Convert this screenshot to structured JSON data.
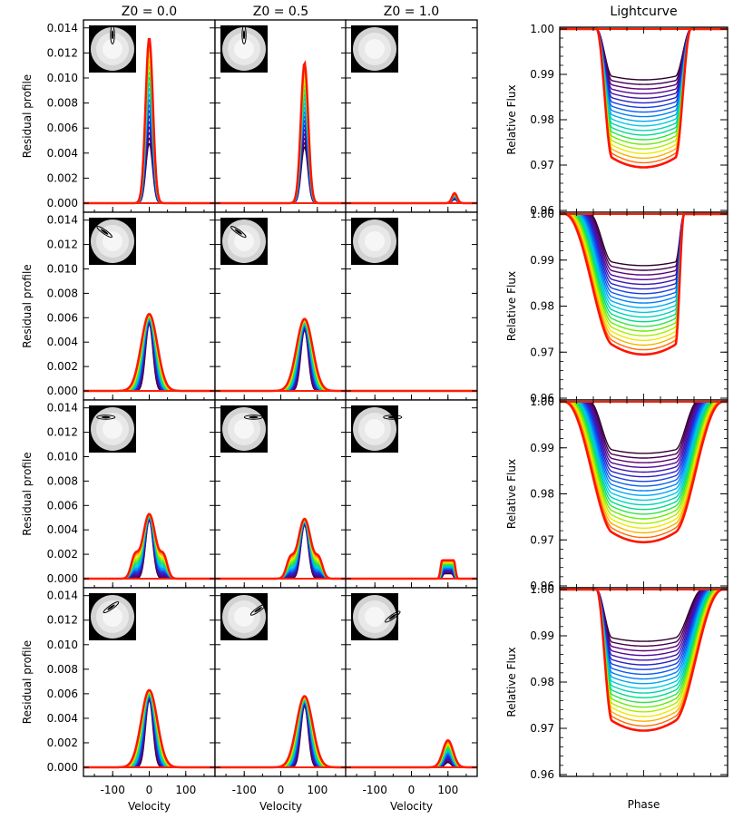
{
  "chart_data": {
    "type": "line",
    "profiles": {
      "column_titles": [
        "Z0 = 0.0",
        "Z0 = 0.5",
        "Z0 = 1.0"
      ],
      "ylabel": "Residual profile",
      "xlabel": "Velocity",
      "xlim": [
        -180,
        180
      ],
      "ylim": [
        -0.0002,
        0.0145
      ],
      "x_ticks": [
        "-100",
        "0",
        "100"
      ],
      "x_tick_values": [
        -100,
        0,
        100
      ],
      "y_ticks": [
        "0.000",
        "0.002",
        "0.004",
        "0.006",
        "0.008",
        "0.010",
        "0.012",
        "0.014"
      ],
      "y_tick_values": [
        0,
        0.002,
        0.004,
        0.006,
        0.008,
        0.01,
        0.012,
        0.014
      ],
      "rows": [
        [
          {
            "center": 0,
            "peak_min": 0.0048,
            "peak_max": 0.0132,
            "width_min": 9,
            "width_max": 10,
            "shoulder": 0
          },
          {
            "center": 65,
            "peak_min": 0.0045,
            "peak_max": 0.0112,
            "width_min": 9,
            "width_max": 10,
            "shoulder": 0
          },
          {
            "center": 118,
            "peak_min": 0.0003,
            "peak_max": 0.0008,
            "width_min": 6,
            "width_max": 7,
            "shoulder": 0
          }
        ],
        [
          {
            "center": 0,
            "peak_min": 0.0055,
            "peak_max": 0.0063,
            "width_min": 10,
            "width_max": 22,
            "shoulder": 0
          },
          {
            "center": 65,
            "peak_min": 0.005,
            "peak_max": 0.0059,
            "width_min": 10,
            "width_max": 22,
            "shoulder": 0
          },
          {
            "center": 118,
            "peak_min": 0,
            "peak_max": 0,
            "width_min": 6,
            "width_max": 6,
            "shoulder": 0
          }
        ],
        [
          {
            "center": 0,
            "peak_min": 0.0048,
            "peak_max": 0.0053,
            "width_min": 10,
            "width_max": 18,
            "shoulder": 0.0016
          },
          {
            "center": 65,
            "peak_min": 0.0044,
            "peak_max": 0.0049,
            "width_min": 10,
            "width_max": 18,
            "shoulder": 0.0014
          },
          {
            "center": 100,
            "peak_min": 0.0004,
            "peak_max": 0.0015,
            "width_min": 10,
            "width_max": 16,
            "shoulder": 0,
            "flat": true
          }
        ],
        [
          {
            "center": 0,
            "peak_min": 0.0055,
            "peak_max": 0.0063,
            "width_min": 10,
            "width_max": 22,
            "shoulder": 0
          },
          {
            "center": 65,
            "peak_min": 0.005,
            "peak_max": 0.0058,
            "width_min": 10,
            "width_max": 22,
            "shoulder": 0
          },
          {
            "center": 100,
            "peak_min": 0.0004,
            "peak_max": 0.0022,
            "width_min": 8,
            "width_max": 14,
            "shoulder": 0
          }
        ]
      ]
    },
    "lightcurves": {
      "title": "Lightcurve",
      "ylabel": "Relative Flux",
      "xlabel": "Phase",
      "ylim": [
        0.96,
        1.0
      ],
      "y_ticks": [
        "0.96",
        "0.97",
        "0.98",
        "0.99",
        "1.00"
      ],
      "y_tick_values": [
        0.96,
        0.97,
        0.98,
        0.99,
        1.0
      ],
      "depth_min": 0.9888,
      "depth_max": 0.9695,
      "series_count": 20,
      "panels": [
        {
          "ingress": [
            0.22,
            0.31
          ],
          "egress": [
            0.69,
            0.78
          ],
          "spread": 0.0
        },
        {
          "ingress": [
            0.03,
            0.31
          ],
          "egress": [
            0.69,
            0.74
          ],
          "spread": 0.05
        },
        {
          "ingress": [
            0.03,
            0.31
          ],
          "egress": [
            0.69,
            0.97
          ],
          "spread": 0.05
        },
        {
          "ingress": [
            0.22,
            0.31
          ],
          "egress": [
            0.69,
            0.97
          ],
          "spread": 0.04
        }
      ]
    },
    "inset_tracks": [
      [
        {
          "cx": 0.5,
          "cy": 0.2,
          "angle": 90
        },
        {
          "cx": 0.5,
          "cy": 0.2,
          "angle": 90
        },
        null
      ],
      [
        {
          "cx": 0.33,
          "cy": 0.3,
          "angle": 35
        },
        {
          "cx": 0.38,
          "cy": 0.3,
          "angle": 35
        },
        null
      ],
      [
        {
          "cx": 0.36,
          "cy": 0.25,
          "angle": 0
        },
        {
          "cx": 0.7,
          "cy": 0.25,
          "angle": 0
        },
        {
          "cx": 0.88,
          "cy": 0.25,
          "angle": 0
        }
      ],
      [
        {
          "cx": 0.47,
          "cy": 0.3,
          "angle": -35
        },
        {
          "cx": 0.8,
          "cy": 0.35,
          "angle": -35
        },
        {
          "cx": 0.88,
          "cy": 0.5,
          "angle": -35
        }
      ]
    ]
  }
}
